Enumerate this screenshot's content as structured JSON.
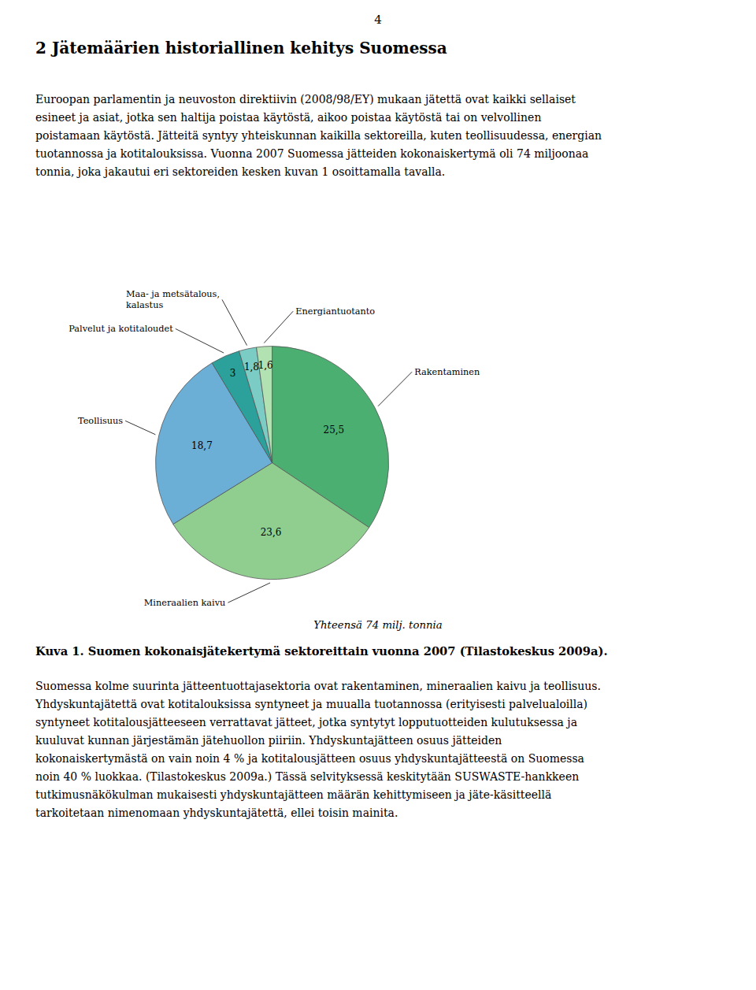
{
  "page_number": "4",
  "heading": "2 Jätemäärien historiallinen kehitys Suomessa",
  "para1_lines": [
    "Euroopan parlamentin ja neuvoston direktiivin (2008/98/EY) mukaan jätettä ovat kaikki sellaiset",
    "esineet ja asiat, jotka sen haltija poistaa käytöstä, aikoo poistaa käytöstä tai on velvollinen",
    "poistamaan käytöstä. Jätteitä syntyy yhteiskunnan kaikilla sektoreilla, kuten teollisuudessa, energian",
    "tuotannossa ja kotitalouksissa. Vuonna 2007 Suomessa jätteiden kokonaiskertymä oli 74 miljoonaa",
    "tonnia, joka jakautui eri sektoreiden kesken kuvan 1 osoittamalla tavalla."
  ],
  "chart_data": {
    "type": "pie",
    "categories": [
      "Rakentaminen",
      "Mineraalien kaivu",
      "Teollisuus",
      "Palvelut ja kotitaloudet",
      "Maa- ja metsätalous,\nkalastus",
      "Energiantuotanto"
    ],
    "values": [
      25.5,
      23.6,
      18.7,
      3.0,
      1.8,
      1.6
    ],
    "value_labels": [
      "25,5",
      "23,6",
      "18,7",
      "3",
      "1,8",
      "1,6"
    ],
    "colors": [
      "#4caf72",
      "#8fce8f",
      "#6baed6",
      "#2ca09a",
      "#7bccc4",
      "#b2e2b2"
    ],
    "data_labels": true,
    "subtitle": "Yhteensä 74 milj. tonnia"
  },
  "caption_bold": "Kuva 1.",
  "caption_rest": " Suomen kokonaisjätekertymä sektoreittain vuonna 2007 (Tilastokeskus 2009a).",
  "para2_lines": [
    "Suomessa kolme suurinta jätteentuottajasektoria ovat rakentaminen, mineraalien kaivu ja teollisuus.",
    "Yhdyskuntajätettä ovat kotitalouksissa syntyneet ja muualla tuotannossa (erityisesti palvelualoilla)",
    "syntyneet kotitalousjätteeseen verrattavat jätteet, jotka syntytyt lopputuotteiden kulutuksessa ja",
    "kuuluvat kunnan järjestämän jätehuollon piiriin. Yhdyskuntajätteen osuus jätteiden",
    "kokonaiskertymästä on vain noin 4 % ja kotitalousjätteen osuus yhdyskuntajätteestä on Suomessa",
    "noin 40 % luokkaa. (Tilastokeskus 2009a.) Tässä selvityksessä keskitytään SUSWASTE-hankkeen",
    "tutkimusnäkökulman mukaisesti yhdyskuntajätteen määrän kehittymiseen ja jäte-käsitteellä",
    "tarkoitetaan nimenomaan yhdyskuntajätettä, ellei toisin mainita."
  ]
}
